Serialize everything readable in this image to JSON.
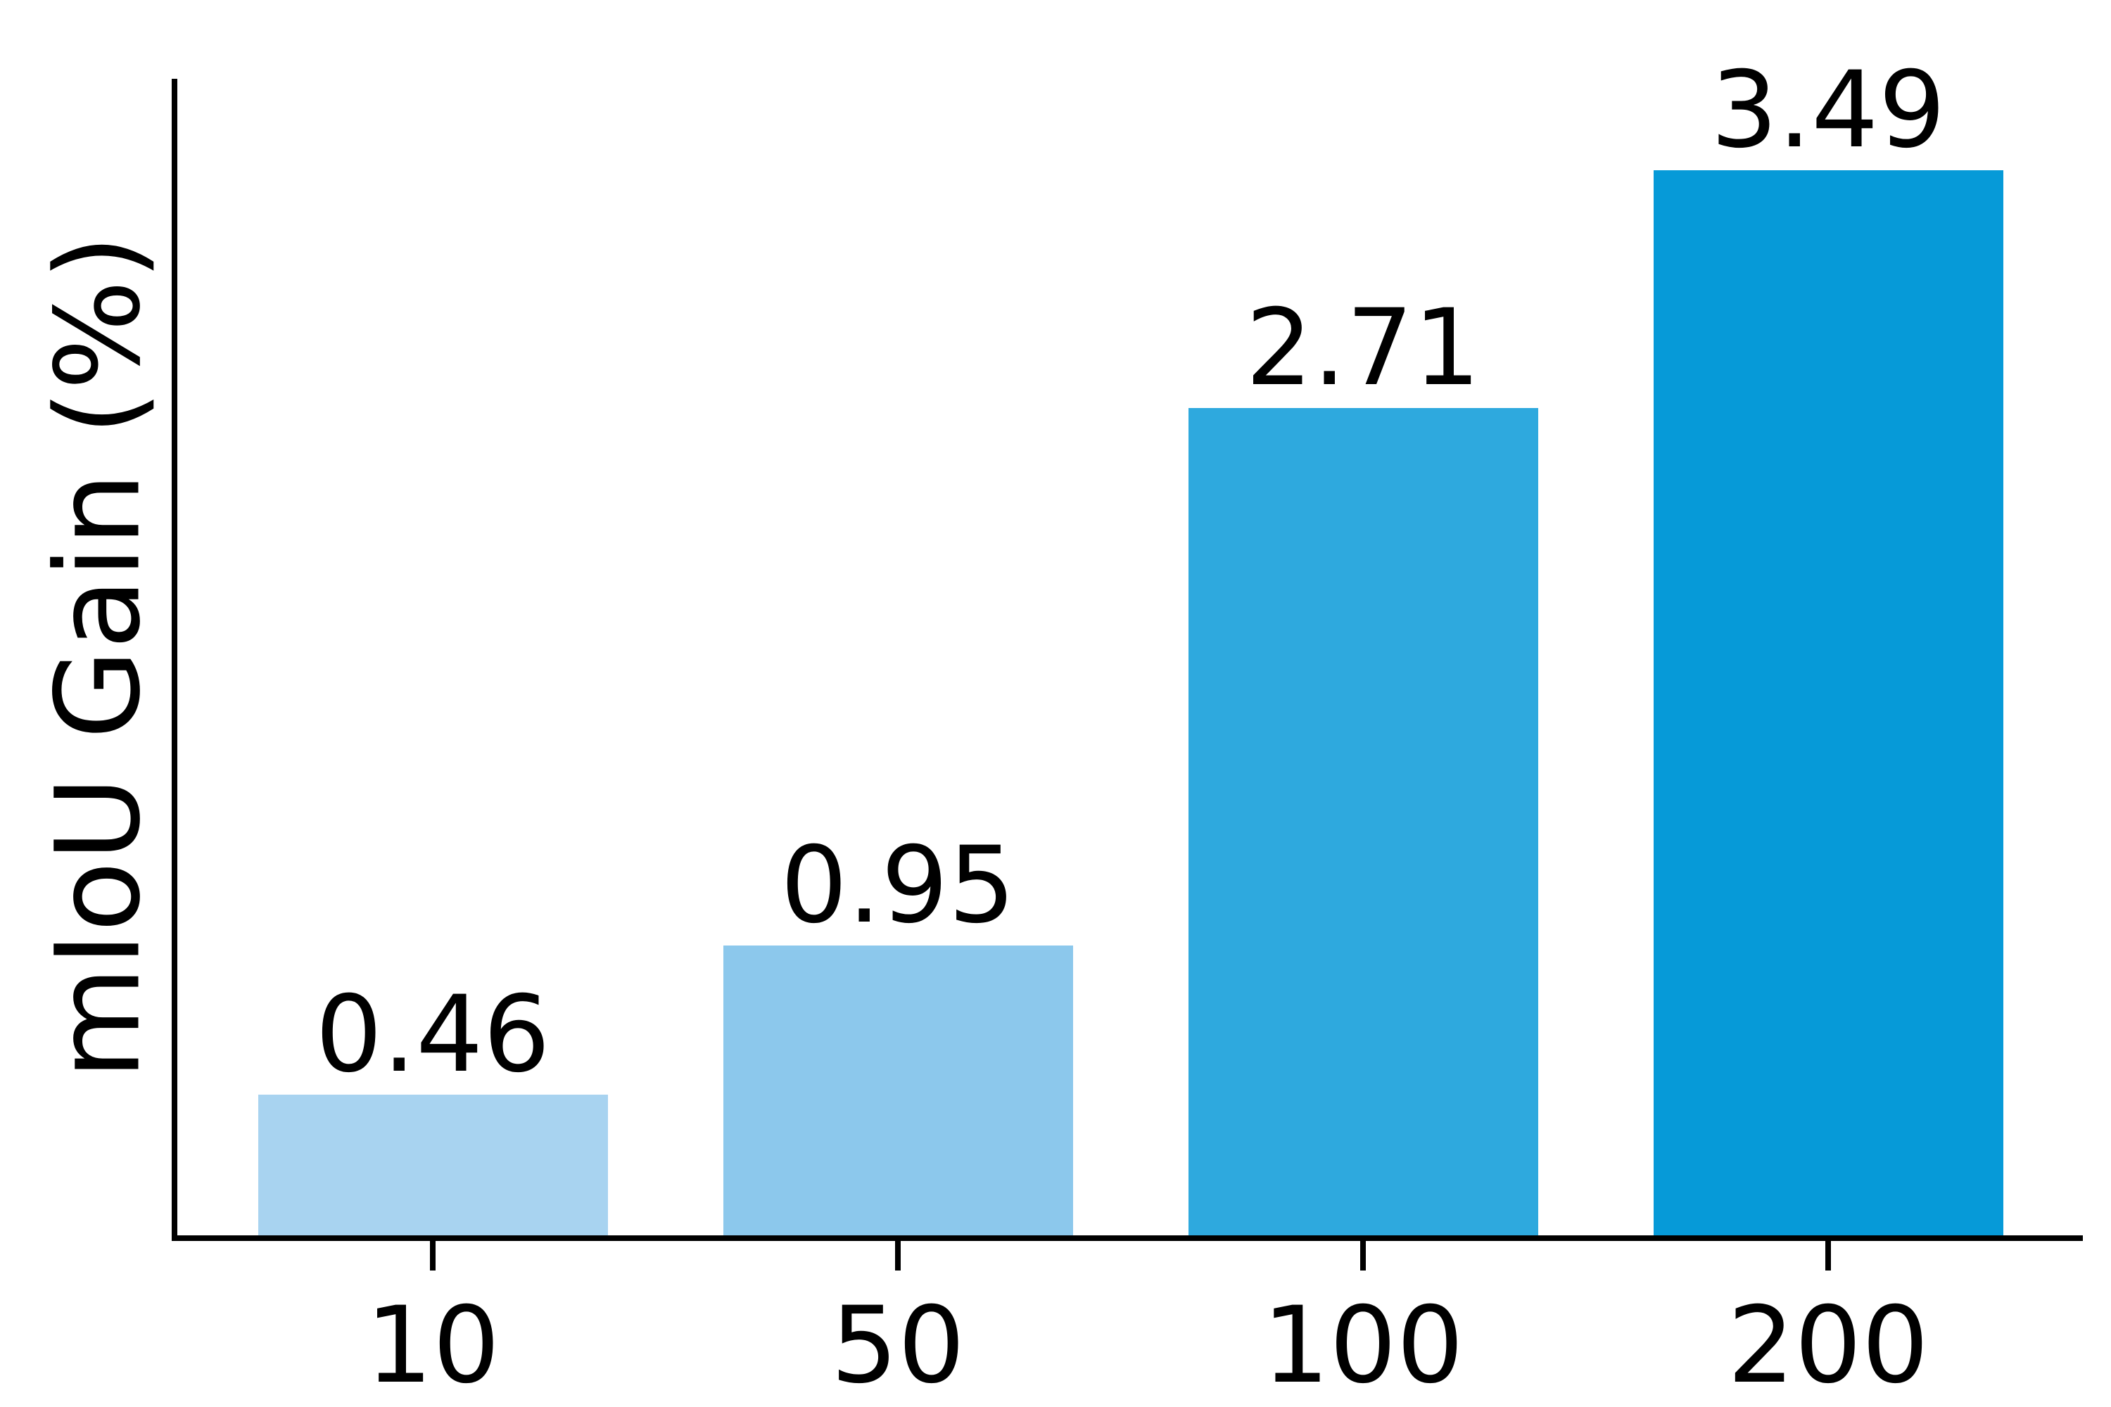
{
  "figure": {
    "background_color": "#ffffff",
    "axis_color": "#000000",
    "text_color": "#000000"
  },
  "chart_data": {
    "type": "bar",
    "title": "",
    "xlabel": "",
    "ylabel": "mIoU Gain (%)",
    "categories": [
      "10",
      "50",
      "100",
      "200"
    ],
    "values": [
      0.46,
      0.95,
      2.71,
      3.49
    ],
    "bar_labels": [
      "0.46",
      "0.95",
      "2.71",
      "3.49"
    ],
    "bar_colors": [
      "#a8d3f0",
      "#8cc8ec",
      "#2ea9de",
      "#069ad8"
    ],
    "ylim": [
      0,
      3.79
    ],
    "grid": false,
    "legend": null,
    "y_ticks_visible": false,
    "layout_hints": {
      "bar_width_fraction": 0.75,
      "value_labels_position": "above-bars"
    }
  }
}
